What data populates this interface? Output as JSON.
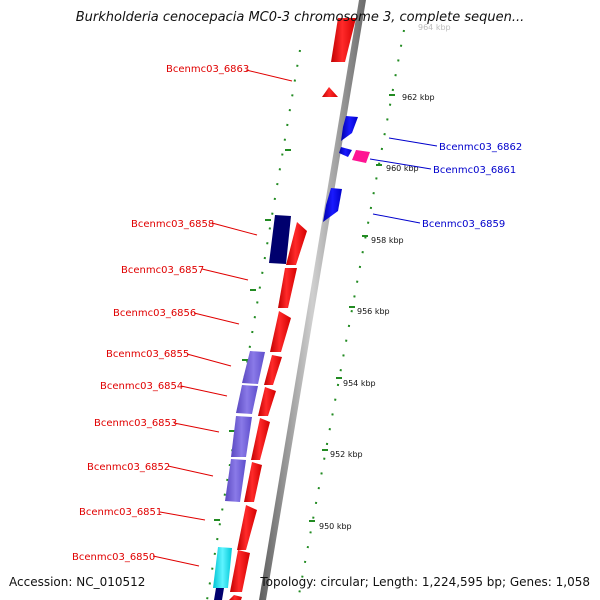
{
  "title": "Burkholderia cenocepacia MC0-3 chromosome 3, complete sequen...",
  "footer": {
    "accession": "Accession: NC_010512",
    "summary": "Topology: circular; Length: 1,224,595 bp; Genes: 1,058"
  },
  "colors": {
    "forward_cds": "#ff1a1a",
    "reverse_cds": "#0000ee",
    "pink_feature": "#ff1493",
    "navy_feature": "#00006e",
    "purple_block": "#6a5acd",
    "cyan_block": "#00e5ee",
    "tick_green": "#228b22",
    "label_red": "#e00000",
    "label_blue": "#0000cc",
    "backbone": "#8a8a8a"
  },
  "scale": {
    "unit": "kbp",
    "ticks": [
      "962 kbp",
      "960 kbp",
      "958 kbp",
      "956 kbp",
      "954 kbp",
      "952 kbp",
      "950 kbp"
    ],
    "faded_tick": "964 kbp"
  },
  "labels": {
    "left": [
      "Bcenmc03_6863",
      "Bcenmc03_6858",
      "Bcenmc03_6857",
      "Bcenmc03_6856",
      "Bcenmc03_6855",
      "Bcenmc03_6854",
      "Bcenmc03_6853",
      "Bcenmc03_6852",
      "Bcenmc03_6851",
      "Bcenmc03_6850"
    ],
    "right": [
      "Bcenmc03_6862",
      "Bcenmc03_6861",
      "Bcenmc03_6859"
    ]
  }
}
